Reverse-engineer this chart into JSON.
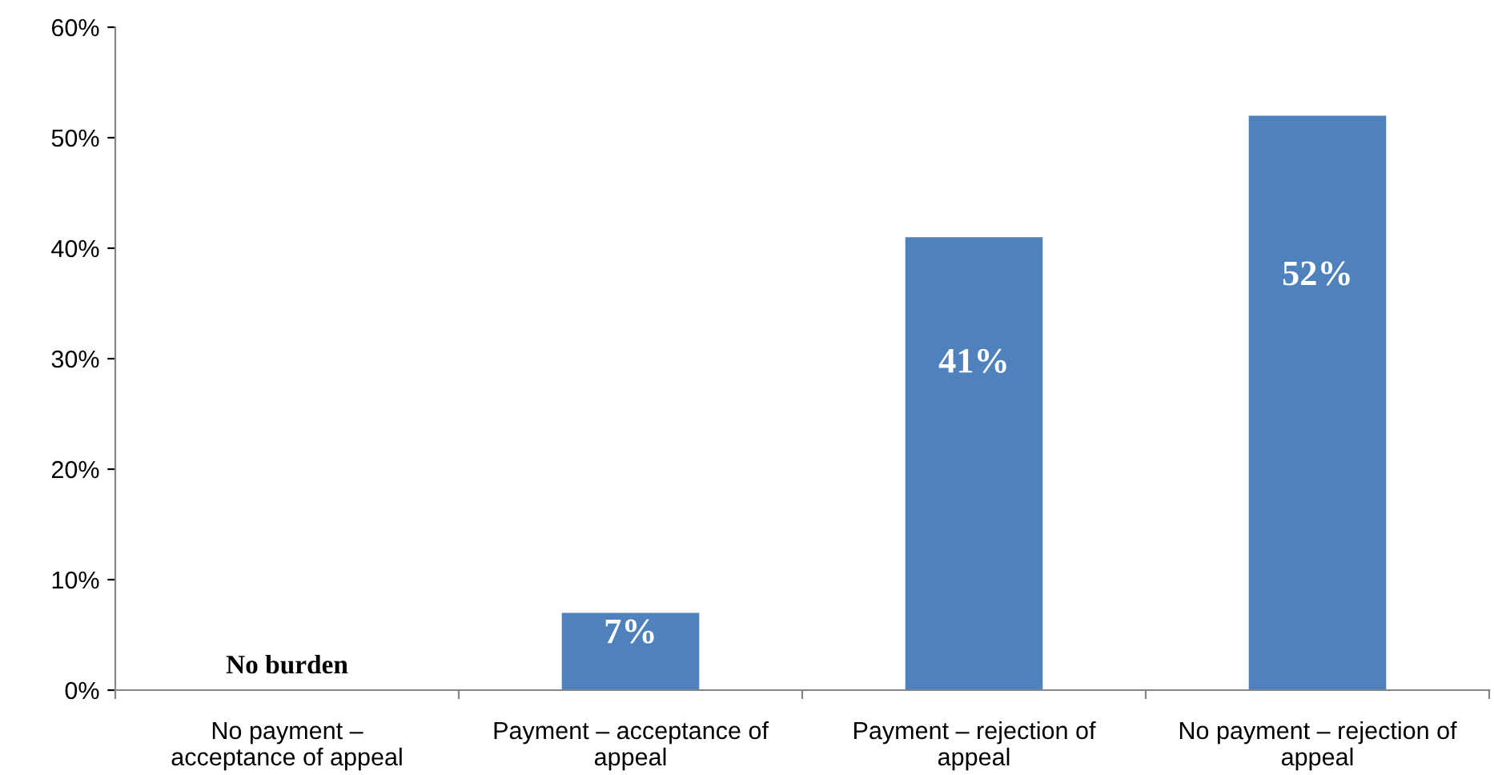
{
  "chart_data": {
    "type": "bar",
    "categories": [
      "No payment –\nacceptance of appeal",
      "Payment – acceptance of\nappeal",
      "Payment – rejection of\nappeal",
      "No payment – rejection of\nappeal"
    ],
    "values": [
      0,
      7,
      41,
      52
    ],
    "value_labels": [
      "No burden",
      "7%",
      "41%",
      "52%"
    ],
    "color": "#4f81bd",
    "ylim": [
      0,
      60
    ],
    "yticks": [
      {
        "value": 0,
        "label": "0%"
      },
      {
        "value": 10,
        "label": "10%"
      },
      {
        "value": 20,
        "label": "20%"
      },
      {
        "value": 30,
        "label": "30%"
      },
      {
        "value": 40,
        "label": "40%"
      },
      {
        "value": 50,
        "label": "50%"
      },
      {
        "value": 60,
        "label": "60%"
      }
    ],
    "grid": false,
    "legend": false
  }
}
